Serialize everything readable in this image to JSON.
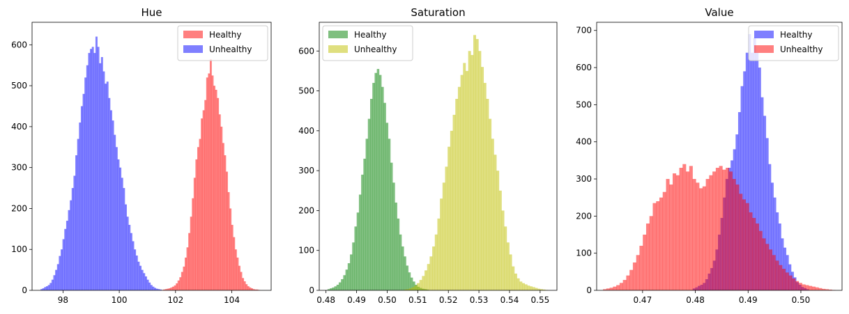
{
  "chart_data": [
    {
      "type": "histogram",
      "title": "Hue",
      "xlim": [
        96.9,
        105.4
      ],
      "ylim": [
        0,
        655
      ],
      "xticks": [
        98,
        100,
        102,
        104
      ],
      "xtick_labels": [
        "98",
        "100",
        "102",
        "104"
      ],
      "yticks": [
        0,
        100,
        200,
        300,
        400,
        500,
        600
      ],
      "ytick_labels": [
        "0",
        "100",
        "200",
        "300",
        "400",
        "500",
        "600"
      ],
      "legend": "upper right",
      "series": [
        {
          "name": "Healthy",
          "color": "#ff0000",
          "alpha": 0.5,
          "range": [
            101.5,
            105.0
          ],
          "counts": [
            1,
            2,
            3,
            4,
            5,
            7,
            9,
            12,
            17,
            24,
            32,
            45,
            58,
            80,
            105,
            140,
            180,
            225,
            275,
            320,
            350,
            370,
            420,
            440,
            465,
            520,
            530,
            565,
            525,
            500,
            490,
            470,
            430,
            400,
            360,
            330,
            290,
            240,
            200,
            160,
            130,
            100,
            80,
            60,
            45,
            30,
            22,
            15,
            10,
            7,
            5,
            3,
            2,
            2,
            1
          ]
        },
        {
          "name": "Unhealthy",
          "color": "#0000ff",
          "alpha": 0.5,
          "range": [
            97.2,
            101.5
          ],
          "counts": [
            3,
            5,
            8,
            10,
            13,
            18,
            26,
            37,
            50,
            64,
            84,
            100,
            125,
            150,
            170,
            196,
            220,
            250,
            280,
            330,
            370,
            410,
            450,
            480,
            520,
            550,
            580,
            590,
            595,
            580,
            620,
            595,
            555,
            570,
            535,
            505,
            510,
            470,
            440,
            415,
            380,
            350,
            320,
            300,
            275,
            250,
            210,
            180,
            160,
            140,
            120,
            100,
            85,
            70,
            60,
            50,
            42,
            34,
            26,
            19,
            13,
            9,
            6,
            4,
            3,
            2
          ]
        }
      ]
    },
    {
      "type": "histogram",
      "title": "Saturation",
      "xlim": [
        0.4778,
        0.5555
      ],
      "ylim": [
        0,
        672
      ],
      "xticks": [
        0.48,
        0.49,
        0.5,
        0.51,
        0.52,
        0.53,
        0.54,
        0.55
      ],
      "xtick_labels": [
        "0.48",
        "0.49",
        "0.50",
        "0.51",
        "0.52",
        "0.53",
        "0.54",
        "0.55"
      ],
      "yticks": [
        0,
        100,
        200,
        300,
        400,
        500,
        600
      ],
      "ytick_labels": [
        "0",
        "100",
        "200",
        "300",
        "400",
        "500",
        "600"
      ],
      "legend": "upper left",
      "series": [
        {
          "name": "Healthy",
          "color": "#008000",
          "alpha": 0.5,
          "range": [
            0.4805,
            0.5135
          ],
          "counts": [
            3,
            5,
            7,
            10,
            14,
            20,
            28,
            38,
            52,
            68,
            90,
            120,
            160,
            195,
            240,
            290,
            330,
            380,
            430,
            480,
            520,
            545,
            555,
            540,
            510,
            470,
            420,
            380,
            320,
            270,
            220,
            180,
            140,
            110,
            85,
            62,
            45,
            32,
            22,
            14,
            9,
            6,
            4,
            3,
            2
          ]
        },
        {
          "name": "Unhealthy",
          "color": "#bfbf00",
          "alpha": 0.5,
          "range": [
            0.5055,
            0.5525
          ],
          "counts": [
            2,
            3,
            5,
            8,
            12,
            18,
            26,
            36,
            50,
            66,
            85,
            110,
            140,
            180,
            230,
            270,
            310,
            360,
            400,
            440,
            480,
            510,
            540,
            570,
            550,
            600,
            590,
            640,
            630,
            600,
            560,
            520,
            480,
            430,
            380,
            340,
            300,
            250,
            200,
            160,
            120,
            90,
            60,
            42,
            30,
            22,
            18,
            15,
            12,
            10,
            8,
            6,
            4,
            3,
            2,
            1
          ]
        }
      ]
    },
    {
      "type": "histogram",
      "title": "Value",
      "xlim": [
        0.4613,
        0.5078
      ],
      "ylim": [
        0,
        722
      ],
      "xticks": [
        0.47,
        0.48,
        0.49,
        0.5
      ],
      "xtick_labels": [
        "0.47",
        "0.48",
        "0.49",
        "0.50"
      ],
      "yticks": [
        0,
        100,
        200,
        300,
        400,
        500,
        600,
        700
      ],
      "ytick_labels": [
        "0",
        "100",
        "200",
        "300",
        "400",
        "500",
        "600",
        "700"
      ],
      "legend": "upper right",
      "series": [
        {
          "name": "Healthy",
          "color": "#0000ff",
          "alpha": 0.5,
          "range": [
            0.4795,
            0.5015
          ],
          "counts": [
            5,
            8,
            12,
            15,
            20,
            30,
            45,
            60,
            80,
            110,
            150,
            195,
            250,
            300,
            330,
            350,
            380,
            420,
            480,
            550,
            590,
            640,
            690,
            640,
            680,
            640,
            600,
            520,
            470,
            410,
            340,
            290,
            250,
            210,
            180,
            140,
            115,
            95,
            70,
            50,
            35,
            22,
            15,
            9,
            6,
            3
          ]
        },
        {
          "name": "Unhealthy",
          "color": "#ff0000",
          "alpha": 0.5,
          "range": [
            0.4625,
            0.5065
          ],
          "counts": [
            3,
            5,
            7,
            10,
            14,
            20,
            28,
            40,
            55,
            75,
            95,
            120,
            150,
            180,
            200,
            235,
            240,
            250,
            265,
            300,
            285,
            315,
            310,
            330,
            340,
            320,
            335,
            300,
            290,
            275,
            280,
            300,
            310,
            320,
            330,
            335,
            325,
            330,
            320,
            300,
            285,
            260,
            245,
            235,
            210,
            195,
            180,
            160,
            140,
            125,
            110,
            95,
            80,
            68,
            58,
            48,
            40,
            32,
            25,
            20,
            16,
            14,
            12,
            10,
            8,
            6,
            4,
            3,
            2,
            1
          ]
        }
      ]
    }
  ]
}
